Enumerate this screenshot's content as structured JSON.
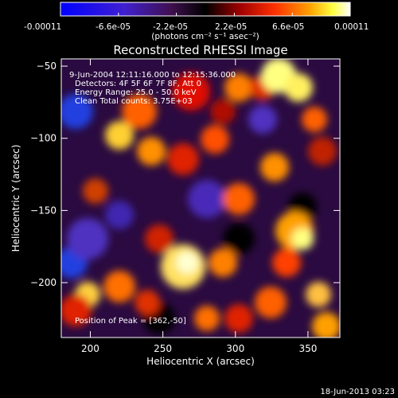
{
  "colorbar": {
    "tick_labels": [
      "-0.00011",
      "-6.6e-05",
      "-2.2e-05",
      "2.2e-05",
      "6.6e-05",
      "0.00011"
    ],
    "unit_label": "(photons cm⁻² s⁻¹ asec⁻²)",
    "range": [
      -0.00011,
      0.00011
    ]
  },
  "annotations": {
    "time_range": "9-Jun-2004 12:11:16.000 to 12:15:36.000",
    "detectors": "Detectors: 4F 5F 6F 7F 8F, Att 0",
    "energy": "Energy Range: 25.0 - 50.0 keV",
    "clean": "Clean     Total counts: 3.75E+03",
    "peak": "Position of Peak = [362,-50]"
  },
  "footer": {
    "timestamp": "18-Jun-2013 03:23"
  },
  "chart_data": {
    "type": "heatmap",
    "title": "Reconstructed RHESSI Image",
    "xlabel": "Heliocentric X (arcsec)",
    "ylabel": "Heliocentric Y (arcsec)",
    "xlim": [
      180,
      372
    ],
    "ylim": [
      -238,
      -45
    ],
    "x_ticks": [
      200,
      250,
      300,
      350
    ],
    "x_tick_labels": [
      "200",
      "250",
      "300",
      "350"
    ],
    "y_ticks": [
      -50,
      -100,
      -150,
      -200
    ],
    "y_tick_labels": [
      "−50",
      "−100",
      "−150",
      "−200"
    ],
    "colormap": "blue-purple-black-red-orange-yellow-white",
    "peak_position": [
      362,
      -50
    ]
  }
}
